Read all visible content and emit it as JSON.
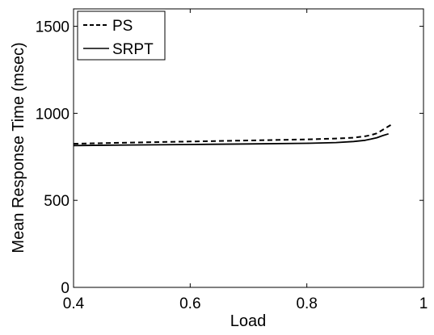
{
  "chart_data": {
    "type": "line",
    "title": "",
    "xlabel": "Load",
    "ylabel": "Mean Response Time (msec)",
    "xlim": [
      0.4,
      1
    ],
    "ylim": [
      0,
      1600
    ],
    "xticks": [
      0.4,
      0.6,
      0.8,
      1
    ],
    "xtick_labels": [
      "0.4",
      "0.6",
      "0.8",
      "1"
    ],
    "yticks": [
      0,
      500,
      1000,
      1500
    ],
    "ytick_labels": [
      "0",
      "500",
      "1000",
      "1500"
    ],
    "grid": false,
    "legend_position": "top-left",
    "series": [
      {
        "name": "PS",
        "style": "dashed",
        "color": "#000000",
        "x": [
          0.4,
          0.5,
          0.6,
          0.7,
          0.8,
          0.85,
          0.88,
          0.9,
          0.91,
          0.92,
          0.93,
          0.94,
          0.945
        ],
        "y": [
          825,
          832,
          838,
          844,
          850,
          855,
          860,
          868,
          875,
          885,
          905,
          925,
          935
        ]
      },
      {
        "name": "SRPT",
        "style": "solid",
        "color": "#000000",
        "x": [
          0.4,
          0.5,
          0.6,
          0.7,
          0.8,
          0.85,
          0.88,
          0.9,
          0.91,
          0.92,
          0.93,
          0.94
        ],
        "y": [
          815,
          818,
          821,
          824,
          828,
          832,
          838,
          845,
          852,
          860,
          872,
          882
        ]
      }
    ]
  }
}
